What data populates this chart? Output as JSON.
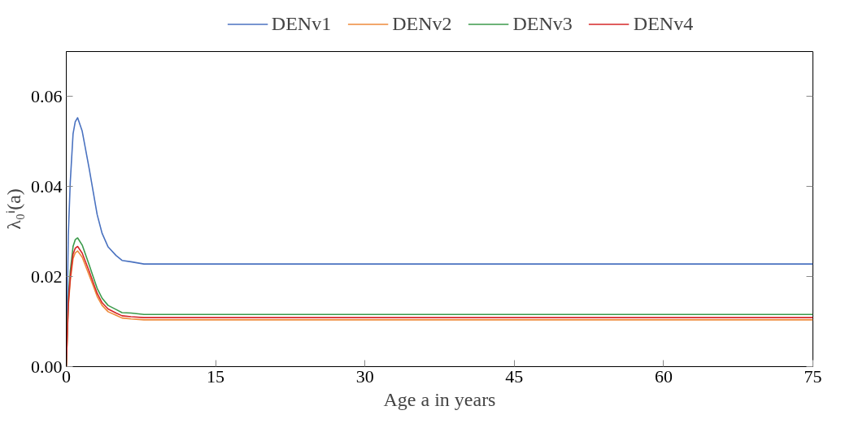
{
  "chart_data": {
    "type": "line",
    "xlabel": "Age a in years",
    "ylabel": "λ₀ⁱ(a)",
    "x": [
      0,
      0.2,
      0.4,
      0.68,
      0.9,
      1.14,
      1.6,
      2.3,
      2.7,
      3.1,
      3.6,
      4.2,
      5,
      5.6,
      6.5,
      7.8,
      75
    ],
    "series": [
      {
        "name": "DENv1",
        "color": "#4a72c0",
        "values": [
          0,
          0.029,
          0.041,
          0.0517,
          0.0544,
          0.0553,
          0.0523,
          0.044,
          0.0389,
          0.0338,
          0.0296,
          0.0266,
          0.0247,
          0.0236,
          0.0233,
          0.0228,
          0.0228
        ]
      },
      {
        "name": "DENv2",
        "color": "#ee8a3a",
        "values": [
          0,
          0.0134,
          0.019,
          0.024,
          0.0253,
          0.0257,
          0.0243,
          0.0203,
          0.018,
          0.0156,
          0.0136,
          0.0122,
          0.0114,
          0.0108,
          0.0106,
          0.0104,
          0.0104
        ]
      },
      {
        "name": "DENv3",
        "color": "#3b9a4a",
        "values": [
          0,
          0.0149,
          0.0212,
          0.0267,
          0.0282,
          0.0286,
          0.027,
          0.0226,
          0.02,
          0.0174,
          0.0152,
          0.0136,
          0.0127,
          0.012,
          0.0119,
          0.0116,
          0.0116
        ]
      },
      {
        "name": "DENv4",
        "color": "#d62728",
        "values": [
          0,
          0.0139,
          0.0198,
          0.025,
          0.0263,
          0.0267,
          0.0252,
          0.0212,
          0.0187,
          0.0163,
          0.0142,
          0.0128,
          0.0119,
          0.0113,
          0.0111,
          0.0109,
          0.0109
        ]
      }
    ],
    "xlim": [
      0,
      75
    ],
    "ylim": [
      0,
      0.07
    ],
    "xticks": [
      0,
      15,
      30,
      45,
      60,
      75
    ],
    "yticks": [
      {
        "value": 0,
        "label": "0.00"
      },
      {
        "value": 0.02,
        "label": "0.02"
      },
      {
        "value": 0.04,
        "label": "0.04"
      },
      {
        "value": 0.06,
        "label": "0.06"
      }
    ],
    "legend": "top",
    "grid": false,
    "marker": "none",
    "line_style": "solid"
  }
}
